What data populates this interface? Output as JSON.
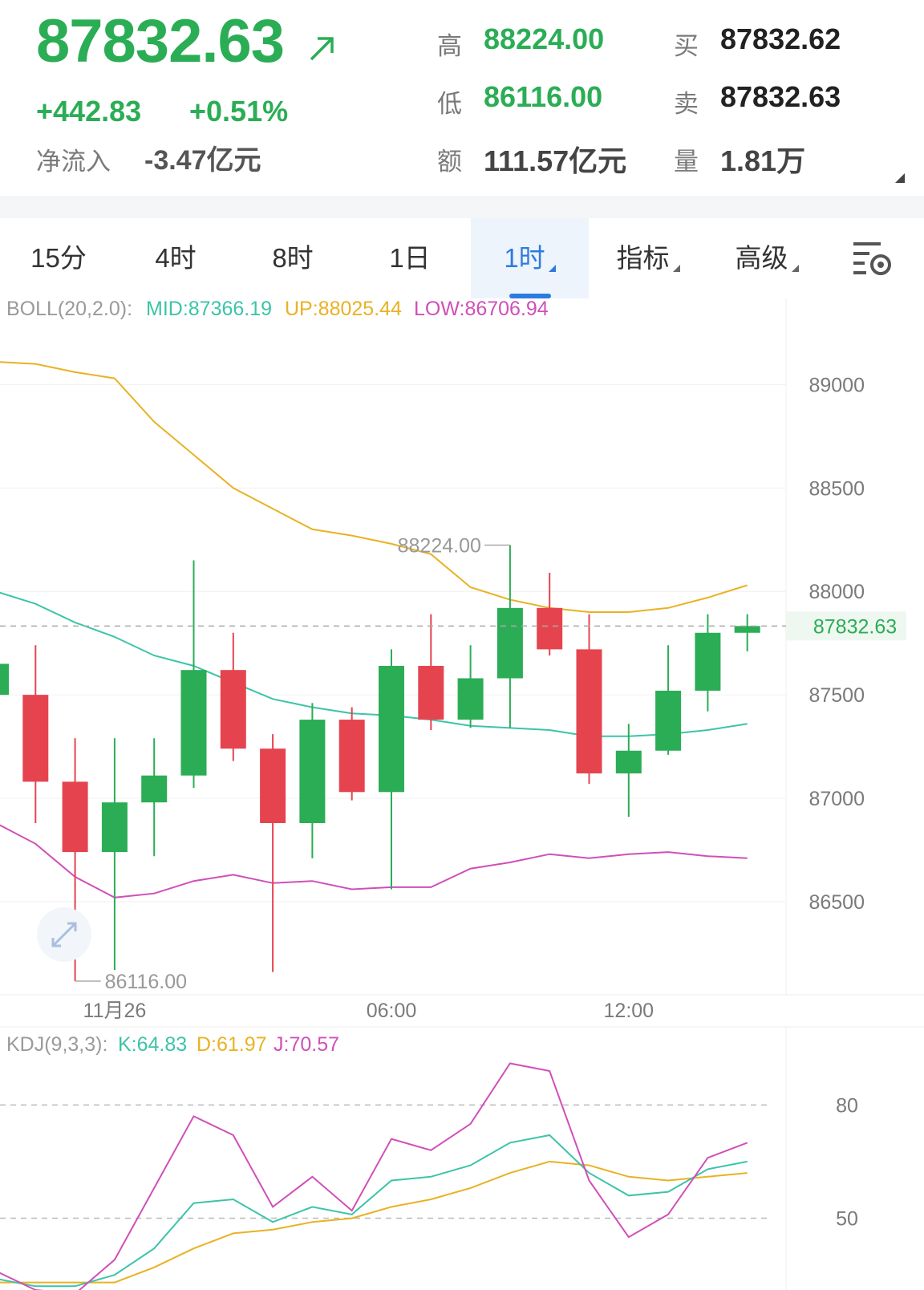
{
  "quote": {
    "price": "87832.63",
    "change": "+442.83",
    "change_pct": "+0.51%",
    "netflow_label": "净流入",
    "netflow_value": "-3.47亿元",
    "high_label": "高",
    "high_value": "88224.00",
    "low_label": "低",
    "low_value": "86116.00",
    "amount_label": "额",
    "amount_value": "111.57亿元",
    "bid_label": "买",
    "bid_value": "87832.62",
    "ask_label": "卖",
    "ask_value": "87832.63",
    "volume_label": "量",
    "volume_value": "1.81万",
    "color_up": "#2bad55",
    "color_down": "#e5444f"
  },
  "tabs": [
    {
      "label": "15分",
      "active": false,
      "dropdown": false
    },
    {
      "label": "4时",
      "active": false,
      "dropdown": false
    },
    {
      "label": "8时",
      "active": false,
      "dropdown": false
    },
    {
      "label": "1日",
      "active": false,
      "dropdown": false
    },
    {
      "label": "1时",
      "active": true,
      "dropdown": true
    },
    {
      "label": "指标",
      "active": false,
      "dropdown": true
    },
    {
      "label": "高级",
      "active": false,
      "dropdown": true
    }
  ],
  "settings_icon": "chart-settings-icon",
  "chart_data": [
    {
      "type": "candlestick",
      "indicator_label": "BOLL(20,2.0):",
      "mid_label": "MID:87366.19",
      "up_label": "UP:88025.44",
      "low_label": "LOW:86706.94",
      "mid_color": "#3cc4a8",
      "up_color": "#e8b224",
      "low_color": "#d04fb8",
      "y_ticks": [
        "89000",
        "88500",
        "88000",
        "87500",
        "87000",
        "86500"
      ],
      "ylim": [
        86050,
        89300
      ],
      "x_ticks": [
        {
          "label": "11月26",
          "index": 3
        },
        {
          "label": "06:00",
          "index": 10
        },
        {
          "label": "12:00",
          "index": 16
        }
      ],
      "current_price": "87832.63",
      "high_marker": "88224.00",
      "low_marker": "86116.00",
      "candles": [
        {
          "o": 87500,
          "h": 87650,
          "l": 87350,
          "c": 87650
        },
        {
          "o": 87500,
          "h": 87740,
          "l": 86880,
          "c": 87080
        },
        {
          "o": 87080,
          "h": 87290,
          "l": 86116,
          "c": 86740
        },
        {
          "o": 86740,
          "h": 87290,
          "l": 86170,
          "c": 86980
        },
        {
          "o": 86980,
          "h": 87290,
          "l": 86720,
          "c": 87110
        },
        {
          "o": 87110,
          "h": 88150,
          "l": 87050,
          "c": 87620
        },
        {
          "o": 87620,
          "h": 87800,
          "l": 87180,
          "c": 87240
        },
        {
          "o": 87240,
          "h": 87310,
          "l": 86160,
          "c": 86880
        },
        {
          "o": 86880,
          "h": 87460,
          "l": 86710,
          "c": 87380
        },
        {
          "o": 87380,
          "h": 87440,
          "l": 86990,
          "c": 87030
        },
        {
          "o": 87030,
          "h": 87720,
          "l": 86560,
          "c": 87640
        },
        {
          "o": 87640,
          "h": 87890,
          "l": 87330,
          "c": 87380
        },
        {
          "o": 87380,
          "h": 87740,
          "l": 87340,
          "c": 87580
        },
        {
          "o": 87580,
          "h": 88224,
          "l": 87340,
          "c": 87920
        },
        {
          "o": 87920,
          "h": 88090,
          "l": 87690,
          "c": 87720
        },
        {
          "o": 87720,
          "h": 87890,
          "l": 87070,
          "c": 87120
        },
        {
          "o": 87120,
          "h": 87360,
          "l": 86910,
          "c": 87230
        },
        {
          "o": 87230,
          "h": 87740,
          "l": 87210,
          "c": 87520
        },
        {
          "o": 87520,
          "h": 87890,
          "l": 87420,
          "c": 87800
        },
        {
          "o": 87800,
          "h": 87890,
          "l": 87710,
          "c": 87832.63
        }
      ],
      "up_band": [
        89110,
        89100,
        89060,
        89030,
        88820,
        88660,
        88500,
        88400,
        88300,
        88270,
        88230,
        88180,
        88020,
        87960,
        87920,
        87900,
        87900,
        87920,
        87970,
        88030
      ],
      "mid_band": [
        88000,
        87940,
        87850,
        87780,
        87690,
        87640,
        87560,
        87480,
        87440,
        87410,
        87400,
        87380,
        87350,
        87340,
        87330,
        87300,
        87300,
        87310,
        87330,
        87360
      ],
      "low_band": [
        86880,
        86780,
        86620,
        86520,
        86540,
        86600,
        86630,
        86590,
        86600,
        86560,
        86570,
        86570,
        86660,
        86690,
        86730,
        86710,
        86730,
        86740,
        86720,
        86710
      ]
    },
    {
      "type": "line",
      "indicator_label": "KDJ(9,3,3):",
      "k_label": "K:64.83",
      "d_label": "D:61.97",
      "j_label": "J:70.57",
      "k_color": "#3cc4a8",
      "d_color": "#e8b224",
      "j_color": "#d04fb8",
      "y_ticks": [
        "80",
        "50"
      ],
      "ylim": [
        31,
        96
      ],
      "k": [
        34,
        32,
        32,
        35,
        42,
        54,
        55,
        49,
        53,
        51,
        60,
        61,
        64,
        70,
        72,
        62,
        56,
        57,
        63,
        65
      ],
      "d": [
        33,
        33,
        33,
        33,
        37,
        42,
        46,
        47,
        49,
        50,
        53,
        55,
        58,
        62,
        65,
        64,
        61,
        60,
        61,
        62
      ],
      "j": [
        36,
        31,
        30,
        39,
        58,
        77,
        72,
        53,
        61,
        52,
        71,
        68,
        75,
        91,
        89,
        60,
        45,
        51,
        66,
        70
      ]
    }
  ]
}
